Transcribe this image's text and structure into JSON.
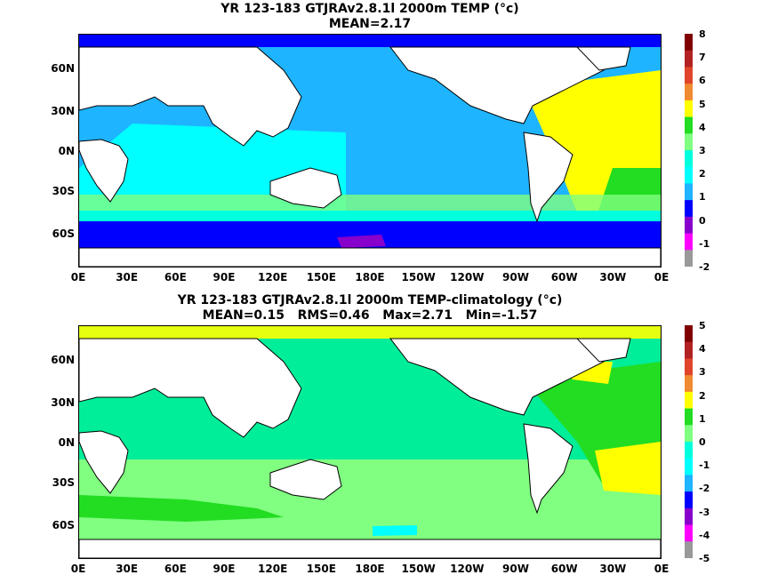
{
  "panels": [
    {
      "id": "top",
      "title_line1": "YR 123-183 GTJRAv2.8.1l 2000m TEMP (°c)",
      "title_line2": "MEAN=2.17",
      "lat_labels": [
        "60N",
        "30N",
        "0N",
        "30S",
        "60S"
      ],
      "lon_labels": [
        "0E",
        "30E",
        "60E",
        "90E",
        "120E",
        "150E",
        "180E",
        "150W",
        "120W",
        "90W",
        "60W",
        "30W",
        "0E"
      ],
      "colorbar_ticks": [
        "8",
        "7",
        "6",
        "5",
        "4",
        "3",
        "2",
        "1",
        "0",
        "-1",
        "-2"
      ],
      "colorbar_colors": [
        "#800000",
        "#b22222",
        "#e0442a",
        "#f08a30",
        "#ffff00",
        "#22dd22",
        "#80ff80",
        "#00ffdd",
        "#00ffff",
        "#1eb4ff",
        "#0000ff",
        "#8800cc",
        "#ff00ff",
        "#999999"
      ]
    },
    {
      "id": "bottom",
      "title_line1": "YR 123-183 GTJRAv2.8.1l 2000m TEMP-climatology (°c)",
      "title_line2": "MEAN=0.15   RMS=0.46   Max=2.71   Min=-1.57",
      "lat_labels": [
        "60N",
        "30N",
        "0N",
        "30S",
        "60S"
      ],
      "lon_labels": [
        "0E",
        "30E",
        "60E",
        "90E",
        "120E",
        "150E",
        "180E",
        "150W",
        "120W",
        "90W",
        "60W",
        "30W",
        "0E"
      ],
      "colorbar_ticks": [
        "5",
        "4",
        "3",
        "2",
        "1",
        "0",
        "-1",
        "-2",
        "-3",
        "-4",
        "-5"
      ],
      "colorbar_colors": [
        "#800000",
        "#b22222",
        "#e0442a",
        "#f08a30",
        "#ffff00",
        "#22dd22",
        "#80ff80",
        "#00ffdd",
        "#00ffff",
        "#1eb4ff",
        "#0000ff",
        "#8800cc",
        "#ff00ff",
        "#999999"
      ]
    }
  ],
  "colors": {
    "land": "#ffffff",
    "coast": "#000000",
    "pacific_top": "#1eb4ff",
    "indian_top": "#00ffff",
    "atlantic_top": "#ffff00",
    "southern_top": "#0000ff",
    "pacific_bottom": "#00ee99",
    "indian_bottom": "#00ee99",
    "atlantic_bottom": "#22dd22",
    "southern_bottom": "#80ff80"
  }
}
